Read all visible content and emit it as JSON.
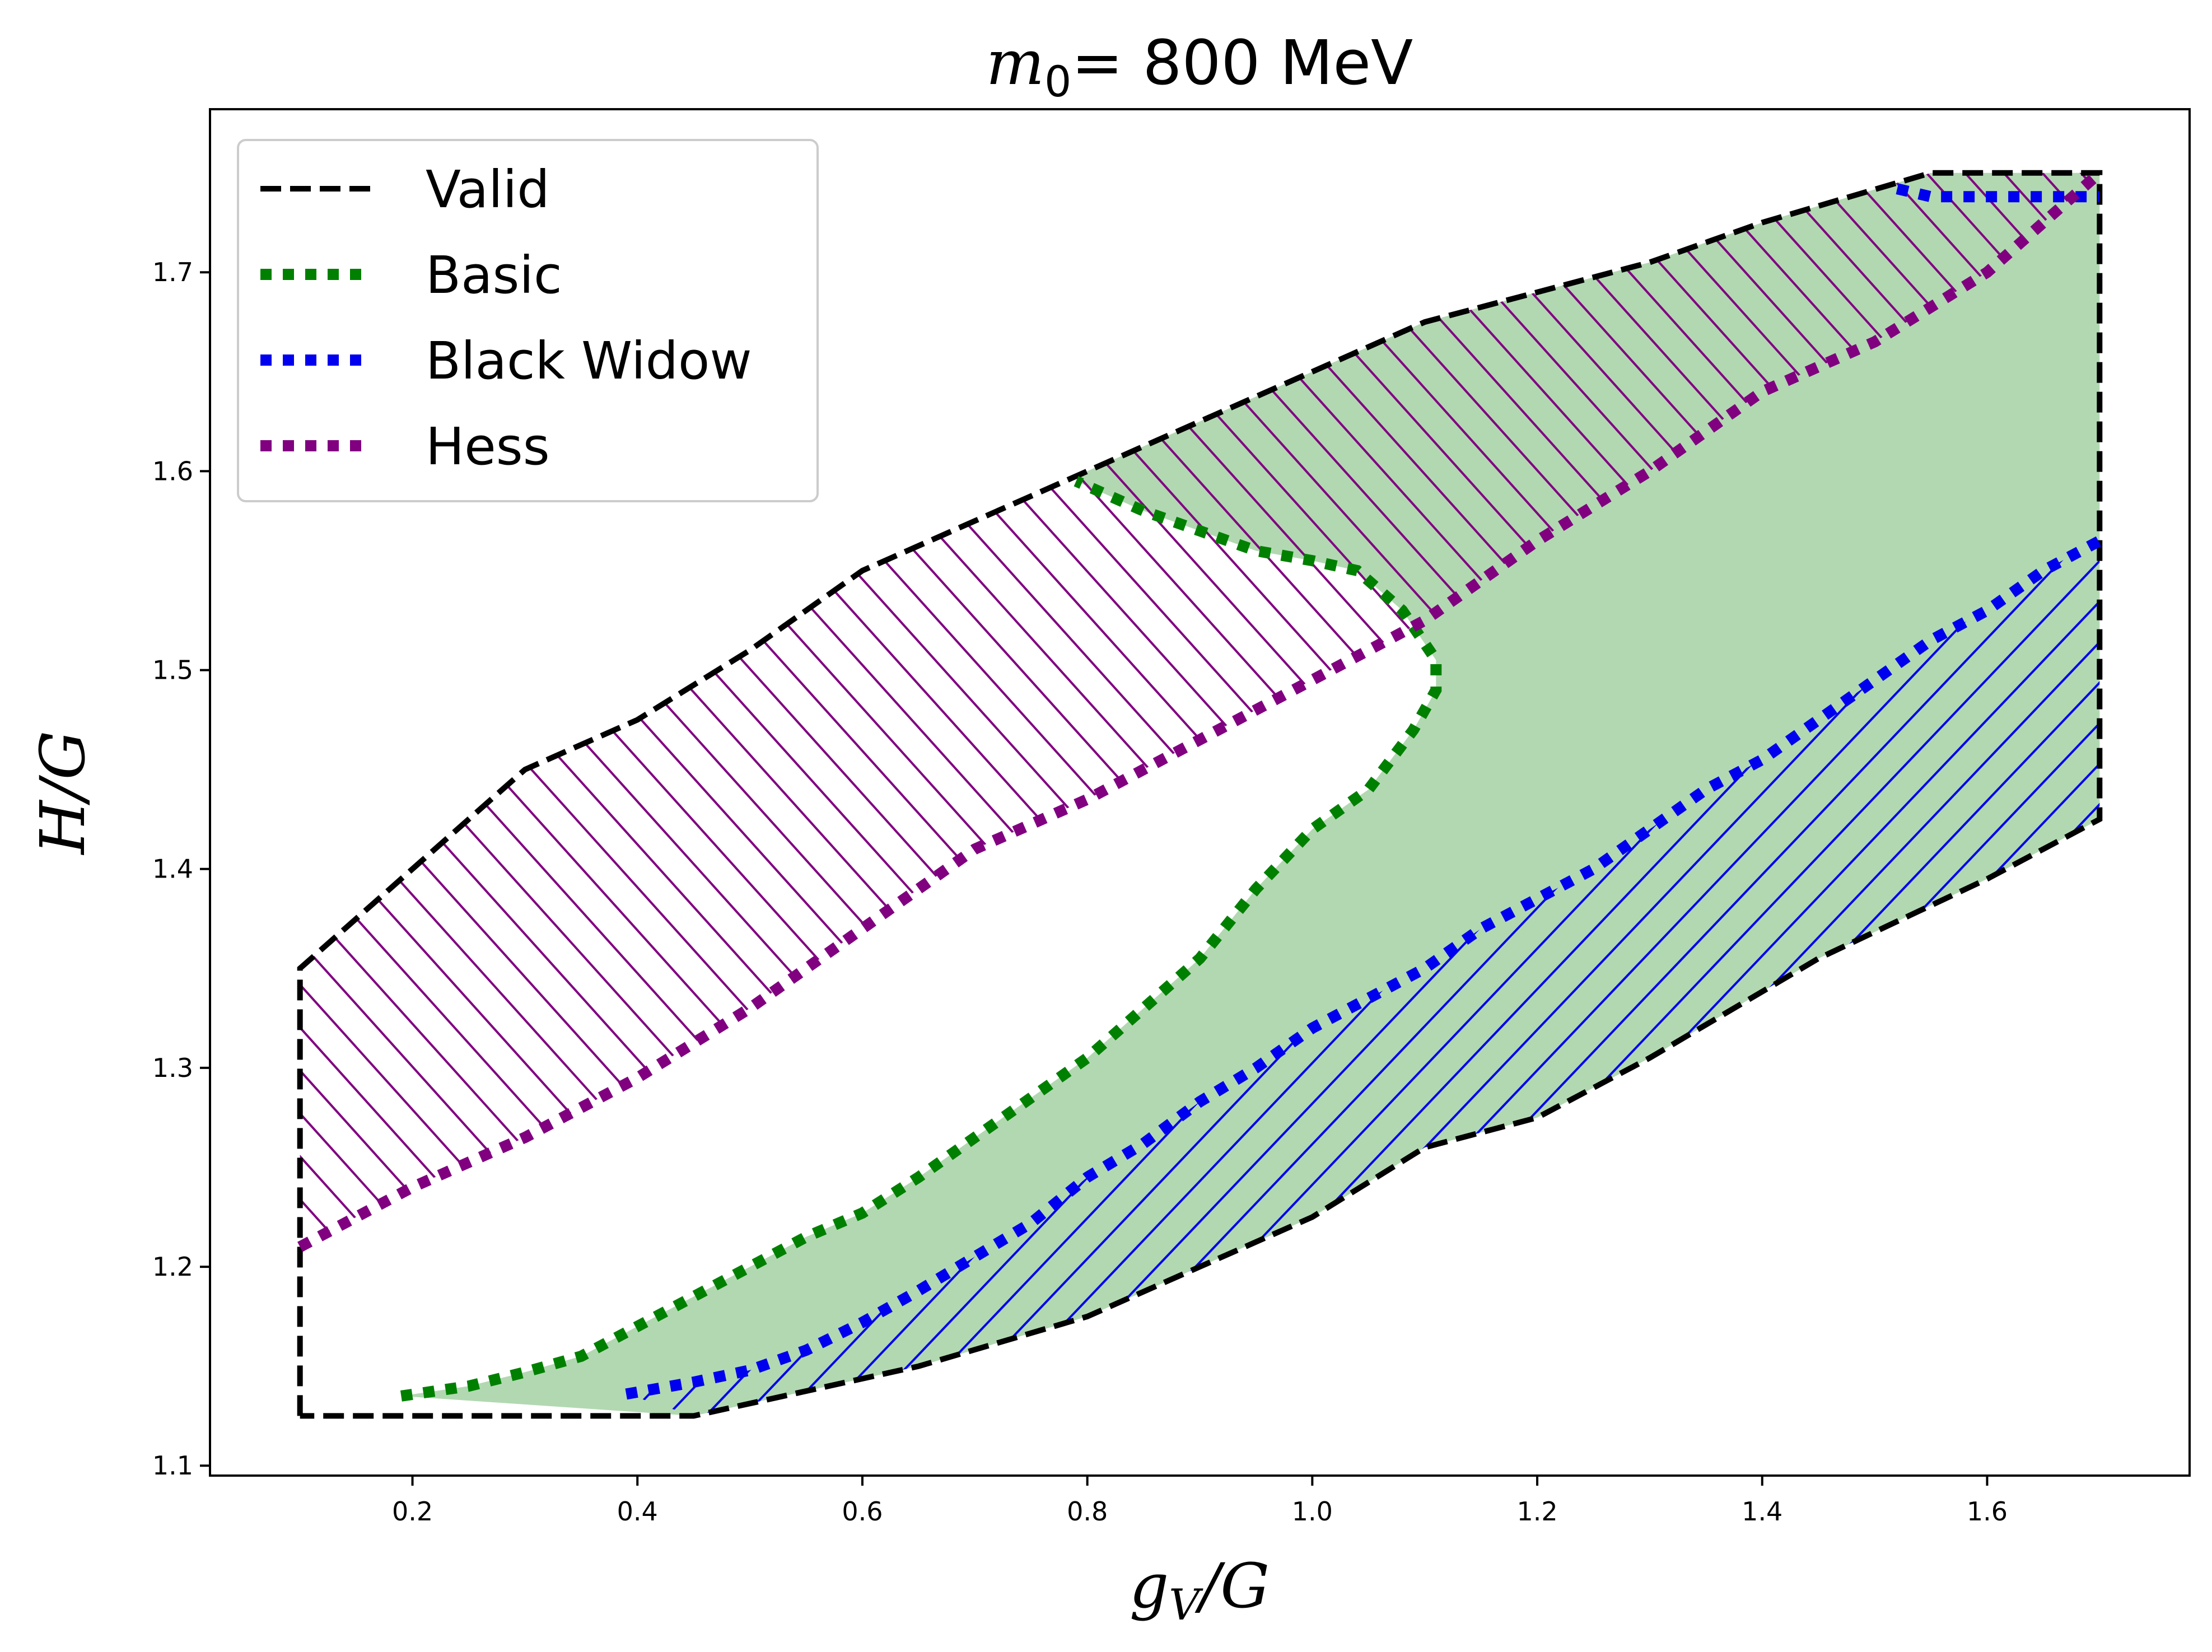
{
  "chart_data": {
    "type": "area",
    "title": {
      "math": "m",
      "sub": "0",
      "rest": "= 800 MeV"
    },
    "xlabel": {
      "math": "g",
      "sub": "V",
      "rest": "/G"
    },
    "ylabel": "H/G",
    "xlim": [
      0.02,
      1.78
    ],
    "ylim": [
      1.095,
      1.782
    ],
    "xticks": [
      0.2,
      0.4,
      0.6,
      0.8,
      1.0,
      1.2,
      1.4,
      1.6
    ],
    "xtick_labels": [
      "0.2",
      "0.4",
      "0.6",
      "0.8",
      "1.0",
      "1.2",
      "1.4",
      "1.6"
    ],
    "yticks": [
      1.1,
      1.2,
      1.3,
      1.4,
      1.5,
      1.6,
      1.7
    ],
    "ytick_labels": [
      "1.1",
      "1.2",
      "1.3",
      "1.4",
      "1.5",
      "1.6",
      "1.7"
    ],
    "legend_position": "upper-left",
    "colors": {
      "valid": "#000000",
      "basic": "#008000",
      "basic_fill": "#b2d8b2",
      "black_widow": "#0000ee",
      "hess": "#800080"
    },
    "series": [
      {
        "name": "Valid",
        "style": "dashed",
        "x": [
          0.1,
          0.1,
          0.2,
          0.3,
          0.4,
          0.5,
          0.6,
          0.7,
          0.8,
          0.9,
          1.0,
          1.1,
          1.2,
          1.3,
          1.4,
          1.55,
          1.7,
          1.7,
          1.65,
          1.6,
          1.45,
          1.3,
          1.2,
          1.1,
          1.0,
          0.9,
          0.8,
          0.65,
          0.45,
          0.1
        ],
        "y": [
          1.125,
          1.35,
          1.4,
          1.45,
          1.475,
          1.51,
          1.55,
          1.575,
          1.6,
          1.625,
          1.65,
          1.675,
          1.69,
          1.705,
          1.725,
          1.75,
          1.75,
          1.425,
          1.41,
          1.395,
          1.355,
          1.305,
          1.275,
          1.26,
          1.225,
          1.2,
          1.175,
          1.15,
          1.125,
          1.125
        ]
      },
      {
        "name": "Basic",
        "style": "dotted",
        "x": [
          0.19,
          0.25,
          0.3,
          0.35,
          0.4,
          0.45,
          0.5,
          0.55,
          0.6,
          0.65,
          0.7,
          0.75,
          0.8,
          0.85,
          0.9,
          0.95,
          1.0,
          1.05,
          1.09,
          1.11,
          1.11,
          1.08,
          1.04,
          1.0,
          0.95,
          0.9,
          0.85,
          0.79
        ],
        "y": [
          1.135,
          1.14,
          1.147,
          1.155,
          1.17,
          1.185,
          1.2,
          1.215,
          1.227,
          1.245,
          1.265,
          1.285,
          1.305,
          1.33,
          1.355,
          1.39,
          1.42,
          1.44,
          1.47,
          1.49,
          1.505,
          1.53,
          1.55,
          1.555,
          1.56,
          1.57,
          1.58,
          1.595
        ]
      },
      {
        "name": "Black Widow",
        "style": "dotted",
        "x": [
          0.39,
          0.45,
          0.5,
          0.55,
          0.6,
          0.65,
          0.7,
          0.75,
          0.8,
          0.85,
          0.9,
          0.95,
          1.0,
          1.05,
          1.1,
          1.15,
          1.2,
          1.25,
          1.3,
          1.35,
          1.4,
          1.45,
          1.5,
          1.55,
          1.6,
          1.65,
          1.7
        ],
        "y": [
          1.136,
          1.142,
          1.148,
          1.158,
          1.172,
          1.188,
          1.205,
          1.222,
          1.245,
          1.262,
          1.283,
          1.3,
          1.32,
          1.335,
          1.35,
          1.37,
          1.385,
          1.4,
          1.42,
          1.44,
          1.455,
          1.475,
          1.495,
          1.515,
          1.53,
          1.55,
          1.565
        ]
      },
      {
        "name": "Black Widow",
        "style": "dotted",
        "x": [
          1.52,
          1.55,
          1.6,
          1.65,
          1.7
        ],
        "y": [
          1.742,
          1.738,
          1.738,
          1.738,
          1.738
        ]
      },
      {
        "name": "Hess",
        "style": "dotted",
        "x": [
          0.1,
          0.15,
          0.2,
          0.3,
          0.4,
          0.5,
          0.6,
          0.7,
          0.8,
          0.9,
          1.0,
          1.05,
          1.1,
          1.15,
          1.2,
          1.3,
          1.4,
          1.5,
          1.6,
          1.65,
          1.7
        ],
        "y": [
          1.21,
          1.225,
          1.24,
          1.265,
          1.295,
          1.33,
          1.37,
          1.41,
          1.435,
          1.465,
          1.495,
          1.51,
          1.525,
          1.545,
          1.565,
          1.6,
          1.64,
          1.665,
          1.7,
          1.725,
          1.75
        ]
      }
    ]
  }
}
